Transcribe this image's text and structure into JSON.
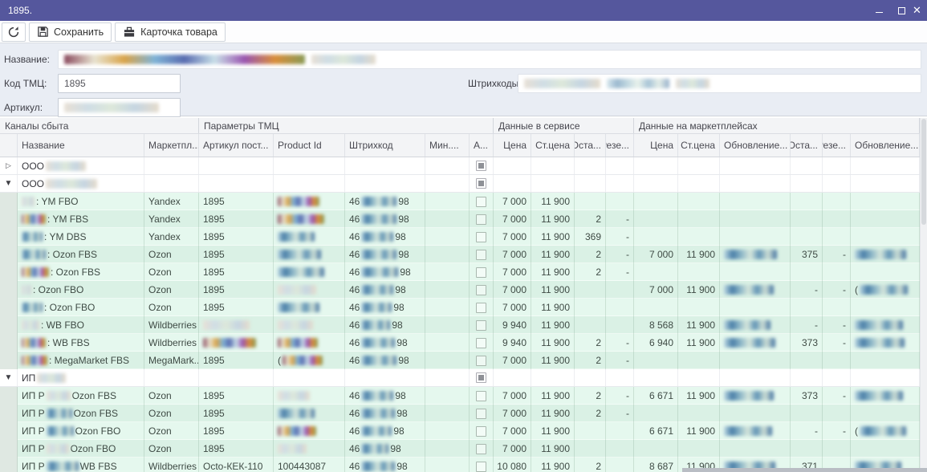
{
  "window": {
    "title": "1895.",
    "minimize": "minimize",
    "maximize": "maximize",
    "close": "close"
  },
  "toolbar": {
    "save_label": "Сохранить",
    "card_label": "Карточка товара"
  },
  "form": {
    "name_label": "Название:",
    "code_label": "Код ТМЦ:",
    "code_value": "1895",
    "article_label": "Артикул:",
    "barcodes_label": "Штрихкоды:"
  },
  "colors": {
    "titlebar": "#55579d",
    "form_bg": "#e9edf4",
    "header_bg": "#f3f4f6",
    "row_light": "#e5f8ee",
    "row_dark": "#daf1e5",
    "scroll_thumb": "#b9bdc4"
  },
  "grid": {
    "bands": [
      "Каналы сбыта",
      "Параметры ТМЦ",
      "Данные в сервисе",
      "Данные на маркетплейсах"
    ],
    "columns": [
      "",
      "Название",
      "Маркетпл...",
      "Артикул пост...",
      "Product Id",
      "Штрихкод",
      "Мин....",
      "А...",
      "Цена",
      "Ст.цена",
      "Оста...",
      "Резе...",
      "Цена",
      "Ст.цена",
      "Обновление...",
      "Оста...",
      "Резе...",
      "Обновление..."
    ],
    "rows": [
      {
        "kind": "group",
        "expander": "collapsed",
        "zebra": "white",
        "cells": {
          "name": {
            "pre": "ООО ",
            "blur": 50,
            "tone": "c"
          },
          "check": "ind"
        }
      },
      {
        "kind": "group",
        "expander": "expanded",
        "zebra": "white",
        "cells": {
          "name": {
            "pre": "ООО ",
            "blur": 64,
            "tone": "c"
          },
          "check": "ind"
        }
      },
      {
        "kind": "item",
        "zebra": "zl",
        "cells": {
          "name": {
            "blur": 16,
            "post": ": YM FBO",
            "tone": "c"
          },
          "marketplace": "Yandex",
          "article": "1895",
          "product": {
            "blur": 52,
            "tone": "a"
          },
          "barcode": {
            "pre": "46",
            "blur": 44,
            "post": "98",
            "tone": "b"
          },
          "check": "empty",
          "svc_price": "7 000",
          "svc_old": "11 900"
        }
      },
      {
        "kind": "item",
        "zebra": "zd",
        "cells": {
          "name": {
            "blur": 30,
            "post": ": YM FBS",
            "tone": "a"
          },
          "marketplace": "Yandex",
          "article": "1895",
          "product": {
            "blur": 58,
            "tone": "a"
          },
          "barcode": {
            "pre": "46",
            "blur": 44,
            "post": "98",
            "tone": "b"
          },
          "check": "empty",
          "svc_price": "7 000",
          "svc_old": "11 900",
          "svc_stock": "2",
          "svc_res": "-"
        }
      },
      {
        "kind": "item",
        "zebra": "zl",
        "cells": {
          "name": {
            "blur": 26,
            "post": ": YM DBS",
            "tone": "b"
          },
          "marketplace": "Yandex",
          "article": "1895",
          "product": {
            "blur": 46,
            "tone": "b"
          },
          "barcode": {
            "pre": "46",
            "blur": 40,
            "post": "98",
            "tone": "b"
          },
          "check": "empty",
          "svc_price": "7 000",
          "svc_old": "11 900",
          "svc_stock": "369",
          "svc_res": "-"
        }
      },
      {
        "kind": "item",
        "zebra": "zd",
        "cells": {
          "name": {
            "blur": 30,
            "post": ": Ozon FBS",
            "tone": "b"
          },
          "marketplace": "Ozon",
          "article": "1895",
          "product": {
            "blur": 54,
            "tone": "b"
          },
          "barcode": {
            "pre": "46",
            "blur": 44,
            "post": "98",
            "tone": "b"
          },
          "check": "empty",
          "svc_price": "7 000",
          "svc_old": "11 900",
          "svc_stock": "2",
          "svc_res": "-",
          "mp_price": "7 000",
          "mp_old": "11 900",
          "mp_upd": {
            "blur": 66,
            "tone": "b"
          },
          "mp_stock": "375",
          "mp_res": "-",
          "mp_upd2": {
            "blur": 64,
            "tone": "b"
          }
        }
      },
      {
        "kind": "item",
        "zebra": "zl",
        "cells": {
          "name": {
            "blur": 34,
            "post": ": Ozon FBS",
            "tone": "a"
          },
          "marketplace": "Ozon",
          "article": "1895",
          "product": {
            "blur": 58,
            "tone": "b"
          },
          "barcode": {
            "pre": "46",
            "blur": 46,
            "post": "98",
            "tone": "b"
          },
          "check": "empty",
          "svc_price": "7 000",
          "svc_old": "11 900",
          "svc_stock": "2",
          "svc_res": "-"
        }
      },
      {
        "kind": "item",
        "zebra": "zd",
        "cells": {
          "name": {
            "blur": 12,
            "post": ": Ozon FBO",
            "tone": "c"
          },
          "marketplace": "Ozon",
          "article": "1895",
          "product": {
            "blur": 48,
            "tone": "c"
          },
          "barcode": {
            "pre": "46",
            "blur": 40,
            "post": "98",
            "tone": "b"
          },
          "check": "empty",
          "svc_price": "7 000",
          "svc_old": "11 900",
          "mp_price": "7 000",
          "mp_old": "11 900",
          "mp_upd": {
            "blur": 62,
            "tone": "b"
          },
          "mp_stock": "-",
          "mp_res": "-",
          "mp_upd2": {
            "pre": "(",
            "blur": 60,
            "tone": "b"
          }
        }
      },
      {
        "kind": "item",
        "zebra": "zl",
        "cells": {
          "name": {
            "blur": 26,
            "post": ": Ozon FBO",
            "tone": "b"
          },
          "marketplace": "Ozon",
          "article": "1895",
          "product": {
            "blur": 52,
            "tone": "b"
          },
          "barcode": {
            "pre": "46",
            "blur": 38,
            "post": "98",
            "tone": "b"
          },
          "check": "empty",
          "svc_price": "7 000",
          "svc_old": "11 900"
        }
      },
      {
        "kind": "item",
        "zebra": "zd",
        "cells": {
          "name": {
            "blur": 22,
            "post": ": WB FBO",
            "tone": "c"
          },
          "marketplace": "Wildberries",
          "article": {
            "blur": 58,
            "tone": "c"
          },
          "product": {
            "blur": 44,
            "tone": "c"
          },
          "barcode": {
            "pre": "46",
            "blur": 36,
            "post": "98",
            "tone": "b"
          },
          "check": "empty",
          "svc_price": "9 940",
          "svc_old": "11 900",
          "mp_price": "8 568",
          "mp_old": "11 900",
          "mp_upd": {
            "blur": 58,
            "tone": "b"
          },
          "mp_stock": "-",
          "mp_res": "-",
          "mp_upd2": {
            "blur": 60,
            "tone": "b"
          }
        }
      },
      {
        "kind": "item",
        "zebra": "zl",
        "cells": {
          "name": {
            "blur": 30,
            "post": ": WB FBS",
            "tone": "a"
          },
          "marketplace": "Wildberries",
          "article": {
            "blur": 66,
            "tone": "a"
          },
          "product": {
            "blur": 50,
            "tone": "a"
          },
          "barcode": {
            "pre": "46",
            "blur": 42,
            "post": "98",
            "tone": "b"
          },
          "check": "empty",
          "svc_price": "9 940",
          "svc_old": "11 900",
          "svc_stock": "2",
          "svc_res": "-",
          "mp_price": "6 940",
          "mp_old": "11 900",
          "mp_upd": {
            "blur": 64,
            "tone": "b"
          },
          "mp_stock": "373",
          "mp_res": "-",
          "mp_upd2": {
            "blur": 62,
            "tone": "b"
          }
        }
      },
      {
        "kind": "item",
        "zebra": "zd",
        "cells": {
          "name": {
            "blur": 32,
            "post": ": MegaMarket FBS",
            "tone": "a"
          },
          "marketplace": "MegaMark...",
          "article": "1895",
          "product": {
            "pre": "(",
            "blur": 50,
            "tone": "a"
          },
          "barcode": {
            "pre": "46",
            "blur": 44,
            "post": "98",
            "tone": "b"
          },
          "check": "empty",
          "svc_price": "7 000",
          "svc_old": "11 900",
          "svc_stock": "2",
          "svc_res": "-"
        }
      },
      {
        "kind": "group",
        "expander": "expanded",
        "zebra": "white",
        "cells": {
          "name": {
            "pre": "ИП ",
            "blur": 36,
            "tone": "c"
          },
          "check": "ind"
        }
      },
      {
        "kind": "item",
        "zebra": "zl",
        "cells": {
          "name": {
            "pre": "ИП Р",
            "blur": 30,
            "post": " Ozon FBS",
            "tone": "c"
          },
          "marketplace": "Ozon",
          "article": "1895",
          "product": {
            "blur": 40,
            "tone": "c"
          },
          "barcode": {
            "pre": "46",
            "blur": 40,
            "post": "98",
            "tone": "b"
          },
          "check": "empty",
          "svc_price": "7 000",
          "svc_old": "11 900",
          "svc_stock": "2",
          "svc_res": "-",
          "mp_price": "6 671",
          "mp_old": "11 900",
          "mp_upd": {
            "blur": 62,
            "tone": "b"
          },
          "mp_stock": "373",
          "mp_res": "-",
          "mp_upd2": {
            "blur": 60,
            "tone": "b"
          }
        }
      },
      {
        "kind": "item",
        "zebra": "zd",
        "cells": {
          "name": {
            "pre": "ИП Р",
            "blur": 32,
            "post": " Ozon FBS",
            "tone": "b"
          },
          "marketplace": "Ozon",
          "article": "1895",
          "product": {
            "blur": 46,
            "tone": "b"
          },
          "barcode": {
            "pre": "46",
            "blur": 42,
            "post": "98",
            "tone": "b"
          },
          "check": "empty",
          "svc_price": "7 000",
          "svc_old": "11 900",
          "svc_stock": "2",
          "svc_res": "-"
        }
      },
      {
        "kind": "item",
        "zebra": "zl",
        "cells": {
          "name": {
            "pre": "ИП Р",
            "blur": 34,
            "post": " Ozon FBO",
            "tone": "b"
          },
          "marketplace": "Ozon",
          "article": "1895",
          "product": {
            "blur": 48,
            "tone": "a"
          },
          "barcode": {
            "pre": "46",
            "blur": 38,
            "post": "98",
            "tone": "b"
          },
          "check": "empty",
          "svc_price": "7 000",
          "svc_old": "11 900",
          "mp_price": "6 671",
          "mp_old": "11 900",
          "mp_upd": {
            "blur": 60,
            "tone": "b"
          },
          "mp_stock": "-",
          "mp_res": "-",
          "mp_upd2": {
            "pre": "(",
            "blur": 58,
            "tone": "b"
          }
        }
      },
      {
        "kind": "item",
        "zebra": "zd",
        "cells": {
          "name": {
            "pre": "ИП Р",
            "blur": 28,
            "post": " Ozon FBO",
            "tone": "c"
          },
          "marketplace": "Ozon",
          "article": "1895",
          "product": {
            "blur": 36,
            "tone": "c"
          },
          "barcode": {
            "pre": "46",
            "blur": 34,
            "post": "98",
            "tone": "b"
          },
          "check": "empty",
          "svc_price": "7 000",
          "svc_old": "11 900"
        }
      },
      {
        "kind": "item",
        "zebra": "zl",
        "cells": {
          "name": {
            "pre": "ИП Р",
            "blur": 40,
            "post": " WB FBS",
            "tone": "b"
          },
          "marketplace": "Wildberries",
          "article": "Octo-КЕК-110",
          "product": "100443087",
          "barcode": {
            "pre": "46",
            "blur": 42,
            "post": "98",
            "tone": "b"
          },
          "check": "empty",
          "svc_price": "10 080",
          "svc_old": "11 900",
          "svc_stock": "2",
          "mp_price": "8 687",
          "mp_old": "11 900",
          "mp_upd": {
            "blur": 64,
            "tone": "b"
          },
          "mp_stock": "371",
          "mp_upd2": {
            "blur": 58,
            "tone": "b"
          }
        }
      }
    ]
  }
}
